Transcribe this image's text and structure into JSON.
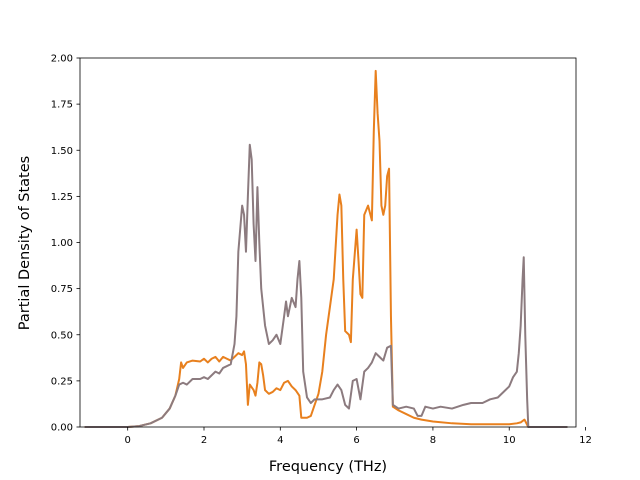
{
  "chart_data": {
    "type": "line",
    "title": "",
    "xlabel": "Frequency (THz)",
    "ylabel": "Partial Density of States",
    "xlim": [
      -1.25,
      11.75
    ],
    "ylim": [
      0.0,
      2.0
    ],
    "x_ticks": [
      0,
      2,
      4,
      6,
      8,
      10,
      12
    ],
    "y_ticks": [
      0.0,
      0.25,
      0.5,
      0.75,
      1.0,
      1.25,
      1.5,
      1.75,
      2.0
    ],
    "x_tick_labels": [
      "0",
      "2",
      "4",
      "6",
      "8",
      "10",
      "12"
    ],
    "y_tick_labels": [
      "0.00",
      "0.25",
      "0.50",
      "0.75",
      "1.00",
      "1.25",
      "1.50",
      "1.75",
      "2.00"
    ],
    "grid": false,
    "legend": "none",
    "series": [
      {
        "color": "#e8801e",
        "points": [
          [
            -1.1,
            0.0
          ],
          [
            0.0,
            0.0
          ],
          [
            0.3,
            0.005
          ],
          [
            0.6,
            0.02
          ],
          [
            0.9,
            0.05
          ],
          [
            1.1,
            0.1
          ],
          [
            1.25,
            0.17
          ],
          [
            1.35,
            0.26
          ],
          [
            1.4,
            0.35
          ],
          [
            1.45,
            0.32
          ],
          [
            1.55,
            0.35
          ],
          [
            1.7,
            0.36
          ],
          [
            1.9,
            0.355
          ],
          [
            2.0,
            0.37
          ],
          [
            2.1,
            0.35
          ],
          [
            2.2,
            0.37
          ],
          [
            2.3,
            0.38
          ],
          [
            2.4,
            0.355
          ],
          [
            2.5,
            0.38
          ],
          [
            2.6,
            0.37
          ],
          [
            2.7,
            0.36
          ],
          [
            2.8,
            0.38
          ],
          [
            2.9,
            0.4
          ],
          [
            3.0,
            0.39
          ],
          [
            3.05,
            0.41
          ],
          [
            3.1,
            0.34
          ],
          [
            3.15,
            0.12
          ],
          [
            3.2,
            0.23
          ],
          [
            3.3,
            0.2
          ],
          [
            3.35,
            0.17
          ],
          [
            3.4,
            0.24
          ],
          [
            3.45,
            0.35
          ],
          [
            3.5,
            0.34
          ],
          [
            3.55,
            0.28
          ],
          [
            3.6,
            0.2
          ],
          [
            3.7,
            0.18
          ],
          [
            3.8,
            0.19
          ],
          [
            3.9,
            0.21
          ],
          [
            4.0,
            0.2
          ],
          [
            4.1,
            0.24
          ],
          [
            4.2,
            0.25
          ],
          [
            4.3,
            0.22
          ],
          [
            4.4,
            0.2
          ],
          [
            4.5,
            0.17
          ],
          [
            4.55,
            0.05
          ],
          [
            4.7,
            0.05
          ],
          [
            4.8,
            0.06
          ],
          [
            4.9,
            0.12
          ],
          [
            5.0,
            0.18
          ],
          [
            5.1,
            0.3
          ],
          [
            5.2,
            0.5
          ],
          [
            5.3,
            0.65
          ],
          [
            5.4,
            0.8
          ],
          [
            5.5,
            1.15
          ],
          [
            5.55,
            1.26
          ],
          [
            5.6,
            1.2
          ],
          [
            5.65,
            0.8
          ],
          [
            5.7,
            0.52
          ],
          [
            5.8,
            0.5
          ],
          [
            5.85,
            0.46
          ],
          [
            5.9,
            0.8
          ],
          [
            6.0,
            1.07
          ],
          [
            6.05,
            0.9
          ],
          [
            6.1,
            0.72
          ],
          [
            6.15,
            0.7
          ],
          [
            6.2,
            1.15
          ],
          [
            6.3,
            1.2
          ],
          [
            6.4,
            1.12
          ],
          [
            6.45,
            1.6
          ],
          [
            6.5,
            1.93
          ],
          [
            6.55,
            1.7
          ],
          [
            6.6,
            1.55
          ],
          [
            6.65,
            1.2
          ],
          [
            6.7,
            1.15
          ],
          [
            6.75,
            1.2
          ],
          [
            6.8,
            1.36
          ],
          [
            6.85,
            1.4
          ],
          [
            6.9,
            0.6
          ],
          [
            6.95,
            0.11
          ],
          [
            7.1,
            0.09
          ],
          [
            7.3,
            0.07
          ],
          [
            7.5,
            0.05
          ],
          [
            7.7,
            0.04
          ],
          [
            8.0,
            0.03
          ],
          [
            8.5,
            0.02
          ],
          [
            9.0,
            0.015
          ],
          [
            9.5,
            0.015
          ],
          [
            10.0,
            0.015
          ],
          [
            10.2,
            0.02
          ],
          [
            10.3,
            0.025
          ],
          [
            10.4,
            0.04
          ],
          [
            10.5,
            0.0
          ],
          [
            11.5,
            0.0
          ]
        ]
      },
      {
        "color": "#8c7b7f",
        "points": [
          [
            -1.1,
            0.0
          ],
          [
            0.0,
            0.0
          ],
          [
            0.3,
            0.005
          ],
          [
            0.6,
            0.02
          ],
          [
            0.9,
            0.05
          ],
          [
            1.1,
            0.1
          ],
          [
            1.25,
            0.17
          ],
          [
            1.35,
            0.23
          ],
          [
            1.45,
            0.24
          ],
          [
            1.55,
            0.23
          ],
          [
            1.7,
            0.26
          ],
          [
            1.9,
            0.26
          ],
          [
            2.0,
            0.27
          ],
          [
            2.1,
            0.26
          ],
          [
            2.3,
            0.3
          ],
          [
            2.4,
            0.29
          ],
          [
            2.5,
            0.32
          ],
          [
            2.7,
            0.34
          ],
          [
            2.8,
            0.45
          ],
          [
            2.85,
            0.6
          ],
          [
            2.9,
            0.95
          ],
          [
            3.0,
            1.2
          ],
          [
            3.05,
            1.15
          ],
          [
            3.1,
            0.95
          ],
          [
            3.15,
            1.25
          ],
          [
            3.2,
            1.53
          ],
          [
            3.25,
            1.45
          ],
          [
            3.3,
            1.1
          ],
          [
            3.35,
            0.9
          ],
          [
            3.4,
            1.3
          ],
          [
            3.45,
            1.0
          ],
          [
            3.5,
            0.75
          ],
          [
            3.6,
            0.55
          ],
          [
            3.7,
            0.45
          ],
          [
            3.8,
            0.47
          ],
          [
            3.9,
            0.5
          ],
          [
            4.0,
            0.45
          ],
          [
            4.1,
            0.6
          ],
          [
            4.15,
            0.68
          ],
          [
            4.2,
            0.6
          ],
          [
            4.3,
            0.7
          ],
          [
            4.4,
            0.65
          ],
          [
            4.45,
            0.8
          ],
          [
            4.5,
            0.9
          ],
          [
            4.55,
            0.7
          ],
          [
            4.6,
            0.3
          ],
          [
            4.7,
            0.16
          ],
          [
            4.8,
            0.13
          ],
          [
            4.9,
            0.15
          ],
          [
            5.1,
            0.15
          ],
          [
            5.3,
            0.16
          ],
          [
            5.4,
            0.2
          ],
          [
            5.5,
            0.23
          ],
          [
            5.6,
            0.2
          ],
          [
            5.7,
            0.12
          ],
          [
            5.8,
            0.1
          ],
          [
            5.9,
            0.25
          ],
          [
            6.0,
            0.26
          ],
          [
            6.1,
            0.15
          ],
          [
            6.2,
            0.3
          ],
          [
            6.3,
            0.32
          ],
          [
            6.4,
            0.35
          ],
          [
            6.5,
            0.4
          ],
          [
            6.6,
            0.38
          ],
          [
            6.7,
            0.36
          ],
          [
            6.8,
            0.43
          ],
          [
            6.9,
            0.44
          ],
          [
            6.95,
            0.12
          ],
          [
            7.1,
            0.1
          ],
          [
            7.3,
            0.11
          ],
          [
            7.5,
            0.1
          ],
          [
            7.6,
            0.06
          ],
          [
            7.7,
            0.06
          ],
          [
            7.8,
            0.11
          ],
          [
            8.0,
            0.1
          ],
          [
            8.2,
            0.11
          ],
          [
            8.5,
            0.1
          ],
          [
            8.8,
            0.12
          ],
          [
            9.0,
            0.13
          ],
          [
            9.3,
            0.13
          ],
          [
            9.5,
            0.15
          ],
          [
            9.7,
            0.16
          ],
          [
            9.9,
            0.2
          ],
          [
            10.0,
            0.22
          ],
          [
            10.1,
            0.27
          ],
          [
            10.2,
            0.3
          ],
          [
            10.25,
            0.4
          ],
          [
            10.3,
            0.55
          ],
          [
            10.35,
            0.8
          ],
          [
            10.38,
            0.92
          ],
          [
            10.42,
            0.5
          ],
          [
            10.47,
            0.15
          ],
          [
            10.5,
            0.0
          ],
          [
            11.5,
            0.0
          ]
        ]
      }
    ]
  }
}
